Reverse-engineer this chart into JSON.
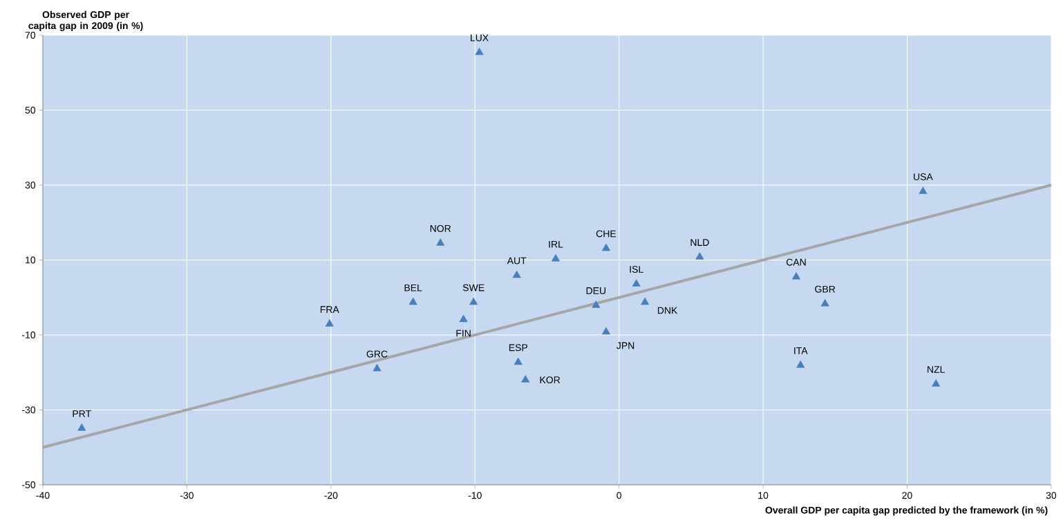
{
  "chart_data": {
    "type": "scatter",
    "xlabel": "Overall GDP per capita gap predicted by the framework (in %)",
    "ylabel": "Observed GDP per capita gap in 2009 (in %)",
    "xlim": [
      -40,
      30
    ],
    "xticks": [
      -40,
      -30,
      -20,
      -10,
      0,
      10,
      20,
      30
    ],
    "ylim": [
      -50,
      70
    ],
    "yticks": [
      -50,
      -30,
      -10,
      10,
      30,
      50,
      70
    ],
    "grid": true,
    "series": [
      {
        "marker": "triangle",
        "color": "#4a7ebb",
        "x": [
          -9.7,
          21.1,
          -12.4,
          -0.9,
          -4.4,
          5.6,
          -7.1,
          1.2,
          12.3,
          -14.3,
          -10.1,
          -1.6,
          1.8,
          14.3,
          -20.1,
          -10.8,
          -0.9,
          -7.0,
          -6.5,
          -16.8,
          12.6,
          22.0,
          -37.3
        ],
        "values": [
          65.4,
          28.3,
          14.5,
          13.1,
          10.3,
          10.8,
          5.9,
          3.6,
          5.5,
          -1.3,
          -1.3,
          -2.1,
          -1.3,
          -1.7,
          -7.1,
          -5.9,
          -9.2,
          -17.3,
          -22.0,
          -19.0,
          -18.1,
          -23.1,
          -34.9
        ]
      },
      {
        "type": "line",
        "color": "#a6a6a6",
        "x": [
          -40,
          30
        ],
        "values": [
          -40,
          30
        ]
      }
    ],
    "annotations": [
      {
        "text": "LUX",
        "x": -9.7,
        "y": 65.4
      },
      {
        "text": "USA",
        "x": 21.1,
        "y": 28.3
      },
      {
        "text": "NOR",
        "x": -12.4,
        "y": 14.5
      },
      {
        "text": "CHE",
        "x": -0.9,
        "y": 13.1
      },
      {
        "text": "IRL",
        "x": -4.4,
        "y": 10.3
      },
      {
        "text": "NLD",
        "x": 5.6,
        "y": 10.8
      },
      {
        "text": "AUT",
        "x": -7.1,
        "y": 5.9
      },
      {
        "text": "ISL",
        "x": 1.2,
        "y": 3.6
      },
      {
        "text": "CAN",
        "x": 12.3,
        "y": 5.5
      },
      {
        "text": "BEL",
        "x": -14.3,
        "y": -1.3
      },
      {
        "text": "SWE",
        "x": -10.1,
        "y": -1.3
      },
      {
        "text": "DEU",
        "x": -1.6,
        "y": -2.1
      },
      {
        "text": "DNK",
        "x": 1.8,
        "y": -1.3
      },
      {
        "text": "GBR",
        "x": 14.3,
        "y": -1.7
      },
      {
        "text": "FRA",
        "x": -20.1,
        "y": -7.1
      },
      {
        "text": "FIN",
        "x": -10.8,
        "y": -5.9
      },
      {
        "text": "JPN",
        "x": -0.9,
        "y": -9.2
      },
      {
        "text": "ESP",
        "x": -7.0,
        "y": -17.3
      },
      {
        "text": "KOR",
        "x": -6.5,
        "y": -22.0
      },
      {
        "text": "GRC",
        "x": -16.8,
        "y": -19.0
      },
      {
        "text": "ITA",
        "x": 12.6,
        "y": -18.1
      },
      {
        "text": "NZL",
        "x": 22.0,
        "y": -23.1
      },
      {
        "text": "PRT",
        "x": -37.3,
        "y": -34.9
      }
    ]
  }
}
